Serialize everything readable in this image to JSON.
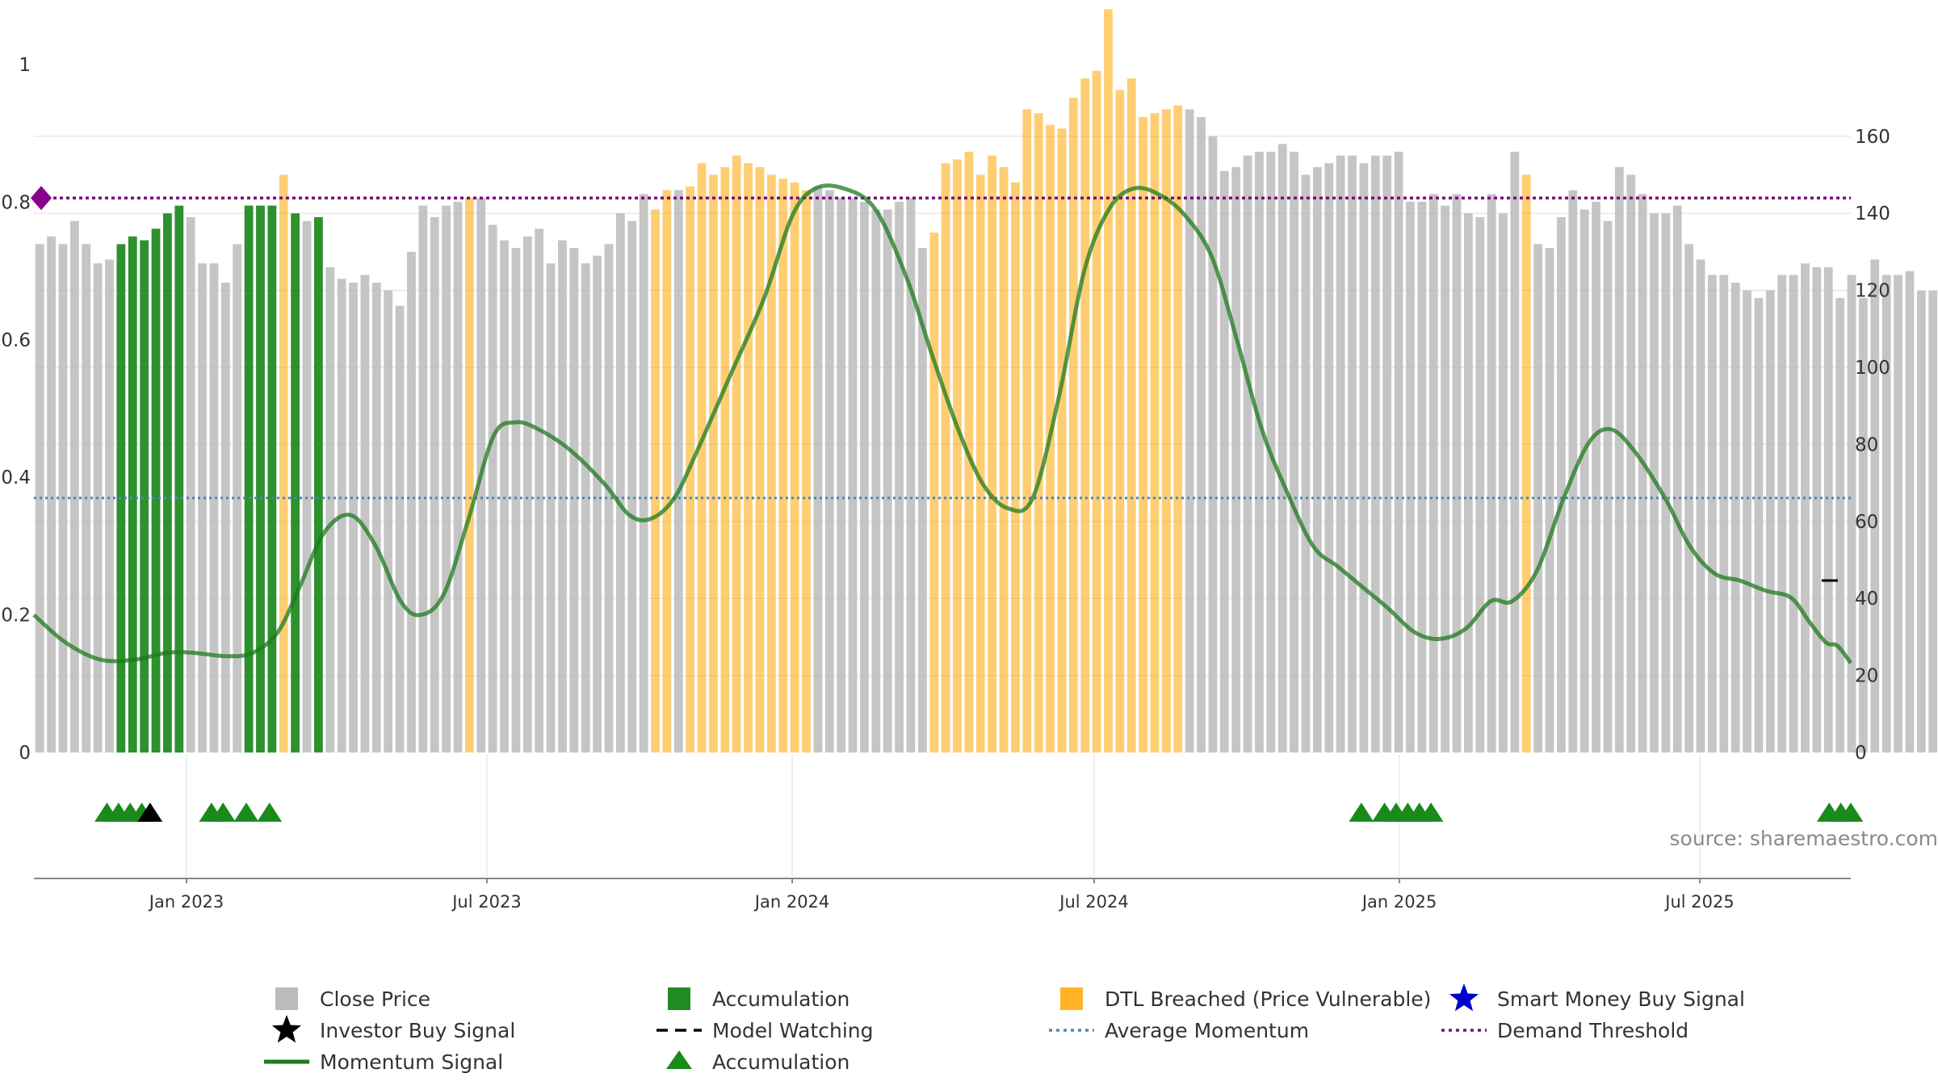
{
  "chart_data": {
    "type": "bar",
    "title": "",
    "source": "source: sharemaestro.com",
    "left_axis": {
      "ticks": [
        0,
        0.2,
        0.4,
        0.6,
        0.8,
        1
      ],
      "tick_labels": [
        "0",
        "0.2",
        "0.4",
        "0.6",
        "0.8",
        "1"
      ],
      "range": [
        0,
        1
      ]
    },
    "right_axis": {
      "ticks": [
        0,
        20,
        40,
        60,
        80,
        100,
        120,
        140,
        160
      ],
      "tick_labels": [
        "0",
        "20",
        "40",
        "60",
        "80",
        "100",
        "120",
        "140",
        "160"
      ],
      "range": [
        0,
        178
      ]
    },
    "x_axis": {
      "start": "2022-10-01",
      "end": "2025-09-30",
      "ticks": [
        {
          "date": "2023-01-01",
          "label": "Jan 2023"
        },
        {
          "date": "2023-07-01",
          "label": "Jul 2023"
        },
        {
          "date": "2024-01-01",
          "label": "Jan 2024"
        },
        {
          "date": "2024-07-01",
          "label": "Jul 2024"
        },
        {
          "date": "2025-01-01",
          "label": "Jan 2025"
        },
        {
          "date": "2025-07-01",
          "label": "Jul 2025"
        }
      ]
    },
    "grid": true,
    "legend_position": "bottom",
    "colors": {
      "close_price": "#bbbbbb",
      "accumulation": "#228b22",
      "dtl_breached": "#ffa500",
      "smart_money": "#0000cc",
      "investor_buy": "#000000",
      "model_watching": "#000000",
      "momentum": "#1e7a1e",
      "average_momentum": "#4f86b8",
      "demand_threshold": "#7a0a7a",
      "marker_accumulation": "#1a8a1a",
      "diamond": "#8b008b"
    },
    "bars": {
      "start": "2022-10-01",
      "interval_days": 7,
      "values": [
        132,
        134,
        132,
        138,
        132,
        127,
        128,
        132,
        134,
        133,
        136,
        140,
        142,
        139,
        127,
        127,
        122,
        132,
        142,
        142,
        142,
        150,
        140,
        138,
        139,
        126,
        123,
        122,
        124,
        122,
        120,
        116,
        130,
        142,
        139,
        142,
        143,
        144,
        144,
        137,
        133,
        131,
        134,
        136,
        127,
        133,
        131,
        127,
        129,
        132,
        140,
        138,
        145,
        141,
        146,
        146,
        147,
        153,
        150,
        152,
        155,
        153,
        152,
        150,
        149,
        148,
        146,
        147,
        146,
        144,
        144,
        143,
        141,
        141,
        143,
        144,
        131,
        135,
        153,
        154,
        156,
        150,
        155,
        152,
        148,
        167,
        166,
        163,
        162,
        170,
        175,
        177,
        193,
        172,
        175,
        165,
        166,
        167,
        168,
        167,
        165,
        160,
        151,
        152,
        155,
        156,
        156,
        158,
        156,
        150,
        152,
        153,
        155,
        155,
        153,
        155,
        155,
        156,
        143,
        143,
        145,
        142,
        145,
        140,
        139,
        145,
        140,
        156,
        150,
        132,
        131,
        139,
        146,
        141,
        143,
        138,
        152,
        150,
        145,
        140,
        140,
        142,
        132,
        128,
        124,
        124,
        122,
        120,
        118,
        120,
        124,
        124,
        127,
        126,
        126,
        118,
        124,
        118,
        128,
        124,
        124,
        125,
        120,
        120,
        126,
        124,
        121,
        124,
        122,
        130
      ],
      "category": [
        "c",
        "c",
        "c",
        "c",
        "c",
        "c",
        "c",
        "a",
        "a",
        "a",
        "a",
        "a",
        "a",
        "c",
        "c",
        "c",
        "c",
        "c",
        "a",
        "a",
        "a",
        "d",
        "a",
        "c",
        "a",
        "c",
        "c",
        "c",
        "c",
        "c",
        "c",
        "c",
        "c",
        "c",
        "c",
        "c",
        "c",
        "d",
        "c",
        "c",
        "c",
        "c",
        "c",
        "c",
        "c",
        "c",
        "c",
        "c",
        "c",
        "c",
        "c",
        "c",
        "c",
        "d",
        "d",
        "c",
        "d",
        "d",
        "d",
        "d",
        "d",
        "d",
        "d",
        "d",
        "d",
        "d",
        "d",
        "c",
        "c",
        "c",
        "c",
        "c",
        "c",
        "c",
        "c",
        "c",
        "c",
        "d",
        "d",
        "d",
        "d",
        "d",
        "d",
        "d",
        "d",
        "d",
        "d",
        "d",
        "d",
        "d",
        "d",
        "d",
        "d",
        "d",
        "d",
        "d",
        "d",
        "d",
        "d",
        "c",
        "c",
        "c",
        "c",
        "c",
        "c",
        "c",
        "c",
        "c",
        "c",
        "c",
        "c",
        "c",
        "c",
        "c",
        "c",
        "c",
        "c",
        "c",
        "c",
        "c",
        "c",
        "c",
        "c",
        "c",
        "c",
        "c",
        "c",
        "c",
        "d",
        "c",
        "c",
        "c",
        "c",
        "c",
        "c",
        "c",
        "c",
        "c",
        "c",
        "c",
        "c",
        "c",
        "c",
        "c",
        "c",
        "c",
        "c",
        "c",
        "c",
        "c",
        "c",
        "c",
        "c",
        "c",
        "c",
        "c",
        "c",
        "c",
        "c",
        "c",
        "c",
        "c",
        "c",
        "c",
        "c",
        "c",
        "c",
        "c",
        "c",
        "c"
      ]
    },
    "momentum": {
      "points": [
        [
          "2022-10-01",
          0.2
        ],
        [
          "2022-10-20",
          0.16
        ],
        [
          "2022-11-10",
          0.135
        ],
        [
          "2022-12-01",
          0.135
        ],
        [
          "2022-12-20",
          0.145
        ],
        [
          "2023-01-05",
          0.145
        ],
        [
          "2023-01-25",
          0.14
        ],
        [
          "2023-02-10",
          0.145
        ],
        [
          "2023-02-25",
          0.175
        ],
        [
          "2023-03-10",
          0.24
        ],
        [
          "2023-03-25",
          0.32
        ],
        [
          "2023-04-10",
          0.345
        ],
        [
          "2023-04-25",
          0.3
        ],
        [
          "2023-05-10",
          0.22
        ],
        [
          "2023-05-22",
          0.2
        ],
        [
          "2023-06-05",
          0.23
        ],
        [
          "2023-06-20",
          0.34
        ],
        [
          "2023-07-05",
          0.46
        ],
        [
          "2023-07-18",
          0.48
        ],
        [
          "2023-08-01",
          0.47
        ],
        [
          "2023-08-20",
          0.44
        ],
        [
          "2023-09-10",
          0.39
        ],
        [
          "2023-09-25",
          0.345
        ],
        [
          "2023-10-08",
          0.34
        ],
        [
          "2023-10-22",
          0.37
        ],
        [
          "2023-11-05",
          0.44
        ],
        [
          "2023-11-25",
          0.55
        ],
        [
          "2023-12-15",
          0.66
        ],
        [
          "2024-01-01",
          0.78
        ],
        [
          "2024-01-15",
          0.82
        ],
        [
          "2024-02-01",
          0.82
        ],
        [
          "2024-02-20",
          0.79
        ],
        [
          "2024-03-10",
          0.69
        ],
        [
          "2024-03-25",
          0.58
        ],
        [
          "2024-04-10",
          0.47
        ],
        [
          "2024-04-25",
          0.39
        ],
        [
          "2024-05-10",
          0.355
        ],
        [
          "2024-05-25",
          0.37
        ],
        [
          "2024-06-10",
          0.52
        ],
        [
          "2024-06-25",
          0.7
        ],
        [
          "2024-07-10",
          0.79
        ],
        [
          "2024-07-25",
          0.82
        ],
        [
          "2024-08-10",
          0.81
        ],
        [
          "2024-08-25",
          0.78
        ],
        [
          "2024-09-10",
          0.72
        ],
        [
          "2024-09-25",
          0.6
        ],
        [
          "2024-10-10",
          0.47
        ],
        [
          "2024-10-25",
          0.38
        ],
        [
          "2024-11-10",
          0.3
        ],
        [
          "2024-11-25",
          0.27
        ],
        [
          "2024-12-10",
          0.24
        ],
        [
          "2024-12-25",
          0.21
        ],
        [
          "2025-01-10",
          0.175
        ],
        [
          "2025-01-25",
          0.165
        ],
        [
          "2025-02-10",
          0.18
        ],
        [
          "2025-02-25",
          0.22
        ],
        [
          "2025-03-10",
          0.22
        ],
        [
          "2025-03-25",
          0.265
        ],
        [
          "2025-04-10",
          0.37
        ],
        [
          "2025-04-25",
          0.45
        ],
        [
          "2025-05-08",
          0.47
        ],
        [
          "2025-05-22",
          0.44
        ],
        [
          "2025-06-10",
          0.37
        ],
        [
          "2025-06-25",
          0.3
        ],
        [
          "2025-07-10",
          0.26
        ],
        [
          "2025-07-25",
          0.25
        ],
        [
          "2025-08-10",
          0.235
        ],
        [
          "2025-08-25",
          0.225
        ],
        [
          "2025-09-05",
          0.19
        ],
        [
          "2025-09-15",
          0.16
        ],
        [
          "2025-09-22",
          0.155
        ],
        [
          "2025-09-30",
          0.13
        ]
      ]
    },
    "average_momentum": 0.37,
    "demand_threshold": 0.806,
    "demand_marker_value": 0.806,
    "model_watching_marker_value": 0.25,
    "signal_markers": {
      "accumulation": [
        "2022-11-14",
        "2022-11-21",
        "2022-11-28",
        "2022-12-05",
        "2023-01-16",
        "2023-01-23",
        "2023-02-06",
        "2023-02-20",
        "2024-12-09",
        "2024-12-23",
        "2024-12-30",
        "2025-01-06",
        "2025-01-13",
        "2025-01-20",
        "2025-09-17",
        "2025-09-24",
        "2025-09-30"
      ],
      "investor_buy": [
        "2022-12-10"
      ]
    },
    "legend": [
      {
        "label": "Close Price",
        "symbol": "square",
        "color_key": "close_price"
      },
      {
        "label": "Accumulation",
        "symbol": "square",
        "color_key": "accumulation"
      },
      {
        "label": "DTL Breached (Price Vulnerable)",
        "symbol": "square",
        "color_key": "dtl_breached"
      },
      {
        "label": "Smart Money Buy Signal",
        "symbol": "star",
        "color_key": "smart_money"
      },
      {
        "label": "Investor Buy Signal",
        "symbol": "star",
        "color_key": "investor_buy"
      },
      {
        "label": "Model Watching",
        "symbol": "dash",
        "color_key": "model_watching"
      },
      {
        "label": "Average Momentum",
        "symbol": "dotted",
        "color_key": "average_momentum"
      },
      {
        "label": "Demand Threshold",
        "symbol": "dotted",
        "color_key": "demand_threshold"
      },
      {
        "label": "Momentum Signal",
        "symbol": "line",
        "color_key": "momentum"
      },
      {
        "label": "Accumulation",
        "symbol": "triangle",
        "color_key": "marker_accumulation"
      }
    ]
  }
}
